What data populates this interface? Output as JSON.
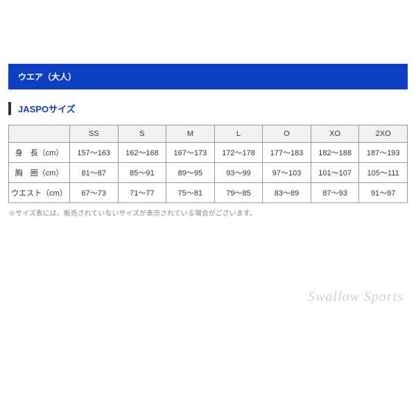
{
  "section_header": "ウエア（大人）",
  "sub_header": "JASPOサイズ",
  "table": {
    "columns": [
      "",
      "SS",
      "S",
      "M",
      "L",
      "O",
      "XO",
      "2XO"
    ],
    "rows": [
      {
        "label": "身　長（cm）",
        "cells": [
          "157～163",
          "162～168",
          "167～173",
          "172～178",
          "177～183",
          "182～188",
          "187～193"
        ]
      },
      {
        "label": "胸　囲（cm）",
        "cells": [
          "81～87",
          "85～91",
          "89～95",
          "93～99",
          "97～103",
          "101～107",
          "105～111"
        ]
      },
      {
        "label": "ウエスト（cm）",
        "cells": [
          "67～73",
          "71～77",
          "75～81",
          "79～85",
          "83～89",
          "87～93",
          "91～97"
        ]
      }
    ]
  },
  "note": "※サイズ表には、販売されていないサイズが表示されている場合がございます。",
  "watermark": "Swallow Sports",
  "colors": {
    "header_bg": "#0d3fc2",
    "header_text": "#ffffff",
    "subheader_text": "#0d3fc2",
    "border": "#999999",
    "th_bg": "#f2f2f2",
    "note_text": "#888888"
  }
}
